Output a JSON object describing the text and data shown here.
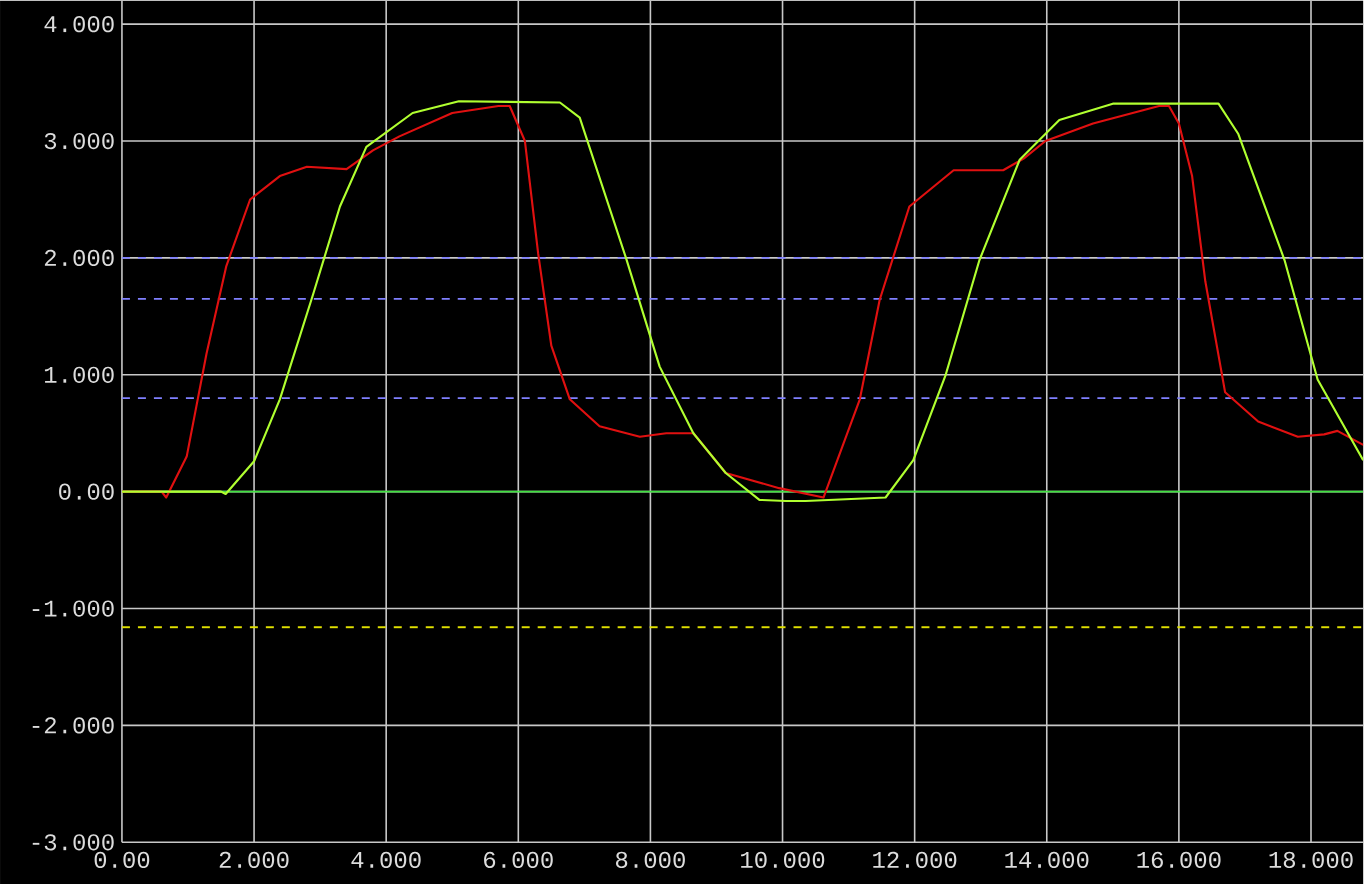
{
  "chart_data": {
    "type": "line",
    "x": [
      0,
      0.6,
      0.67,
      0.98,
      1.28,
      1.58,
      1.94,
      2.39,
      2.8,
      3.4,
      3.8,
      4.2,
      5.0,
      5.7,
      5.87,
      6.1,
      6.3,
      6.5,
      6.78,
      7.23,
      7.84,
      8.24,
      8.65,
      9.14,
      9.95,
      10.62,
      11.17,
      11.47,
      11.92,
      12.59,
      13.34,
      13.65,
      13.98,
      14.7,
      15.7,
      15.85,
      16.0,
      16.2,
      16.4,
      16.7,
      17.2,
      17.8,
      18.2,
      18.4,
      18.79
    ],
    "series": [
      {
        "color": "#e01010",
        "values": [
          0,
          0,
          -0.05,
          0.3,
          1.18,
          1.93,
          2.5,
          2.7,
          2.78,
          2.76,
          2.92,
          3.04,
          3.24,
          3.3,
          3.3,
          3.0,
          2.04,
          1.25,
          0.79,
          0.56,
          0.47,
          0.5,
          0.5,
          0.16,
          0.03,
          -0.05,
          0.79,
          1.64,
          2.44,
          2.75,
          2.75,
          2.85,
          3.0,
          3.15,
          3.3,
          3.3,
          3.15,
          2.7,
          1.8,
          0.85,
          0.6,
          0.47,
          0.49,
          0.52,
          0.4
        ]
      },
      {
        "color": "#b0ff30",
        "x": [
          0,
          1.5,
          1.57,
          2.0,
          2.39,
          2.9,
          3.3,
          3.7,
          4.4,
          5.1,
          6.63,
          6.93,
          7.63,
          8.14,
          8.65,
          9.14,
          9.65,
          10.05,
          10.35,
          11.56,
          11.98,
          12.47,
          12.98,
          13.59,
          14.19,
          15.0,
          16.6,
          16.9,
          17.6,
          18.1,
          18.79
        ],
        "values": [
          0,
          0,
          -0.02,
          0.26,
          0.79,
          1.7,
          2.44,
          2.95,
          3.24,
          3.34,
          3.33,
          3.2,
          2.0,
          1.07,
          0.5,
          0.16,
          -0.07,
          -0.08,
          -0.08,
          -0.05,
          0.27,
          1.0,
          1.98,
          2.84,
          3.18,
          3.32,
          3.32,
          3.06,
          1.98,
          0.96,
          0.27
        ]
      }
    ],
    "xlim": [
      0,
      18.79
    ],
    "ylim": [
      -3,
      4.2
    ],
    "xticks": [
      {
        "value": 0,
        "label": "0.00"
      },
      {
        "value": 2,
        "label": "2.000"
      },
      {
        "value": 4,
        "label": "4.000"
      },
      {
        "value": 6,
        "label": "6.000"
      },
      {
        "value": 8,
        "label": "8.000"
      },
      {
        "value": 10,
        "label": "10.000"
      },
      {
        "value": 12,
        "label": "12.000"
      },
      {
        "value": 14,
        "label": "14.000"
      },
      {
        "value": 16,
        "label": "16.000"
      },
      {
        "value": 18,
        "label": "18.000"
      }
    ],
    "yticks": [
      {
        "value": -3,
        "label": "-3.000"
      },
      {
        "value": -2,
        "label": "-2.000"
      },
      {
        "value": -1,
        "label": "-1.000"
      },
      {
        "value": 0,
        "label": "0.00"
      },
      {
        "value": 1,
        "label": "1.000"
      },
      {
        "value": 2,
        "label": "2.000"
      },
      {
        "value": 3,
        "label": "3.000"
      },
      {
        "value": 4,
        "label": "4.000"
      }
    ],
    "ref_lines": [
      {
        "axis": "y",
        "value": 2.0,
        "color": "#8080ff",
        "line_style": "dashed"
      },
      {
        "axis": "y",
        "value": 1.65,
        "color": "#8080ff",
        "line_style": "dashed"
      },
      {
        "axis": "y",
        "value": 0.8,
        "color": "#8080ff",
        "line_style": "dashed"
      },
      {
        "axis": "y",
        "value": -1.16,
        "color": "#e0e000",
        "line_style": "dashed"
      },
      {
        "axis": "y",
        "value": 0,
        "color": "#40e040",
        "line_style": "solid"
      }
    ],
    "grid": true,
    "line_style": "solid",
    "marker": "none"
  }
}
